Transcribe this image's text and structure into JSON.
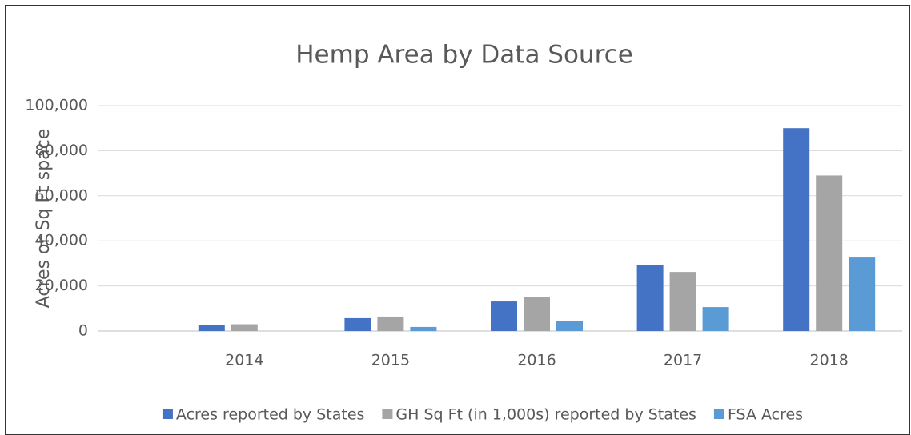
{
  "chart_data": {
    "type": "bar",
    "title": "Hemp Area by Data Source",
    "y_label": "Acres or Sq Ft space",
    "categories": [
      "2014",
      "2015",
      "2016",
      "2017",
      "2018"
    ],
    "series": [
      {
        "name": "Acres reported by States",
        "color": "#4472c4",
        "values": [
          2500,
          5700,
          13100,
          29100,
          90000
        ]
      },
      {
        "name": "GH Sq Ft (in 1,000s) reported by States",
        "color": "#a5a5a5",
        "values": [
          3000,
          6400,
          15200,
          26200,
          69000
        ]
      },
      {
        "name": "FSA Acres",
        "color": "#5b9bd5",
        "values": [
          0,
          1800,
          4600,
          10600,
          32600
        ]
      }
    ],
    "ylim": [
      0,
      100000
    ],
    "yticks": [
      0,
      {
        "value": 20000,
        "label": "20,000"
      },
      {
        "value": 40000,
        "label": "40,000"
      },
      {
        "value": 60000,
        "label": "60,000"
      },
      {
        "value": 80000,
        "label": "80,000"
      },
      {
        "value": 100000,
        "label": "100,000"
      }
    ],
    "grid": true,
    "legend": "bottom"
  }
}
